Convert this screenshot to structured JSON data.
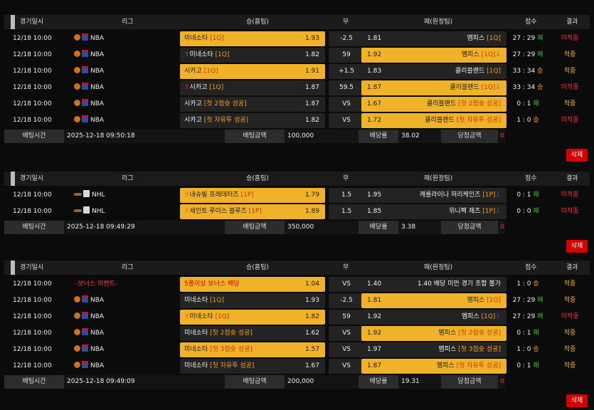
{
  "headers": {
    "date": "경기일시",
    "league": "리그",
    "home": "승(홈팀)",
    "draw": "무",
    "away": "패(원정팀)",
    "score": "점수",
    "result": "결과"
  },
  "footer_labels": {
    "bet_time": "배팅시간",
    "bet_amount": "배팅금액",
    "odds": "배당률",
    "win_amount": "당첨금액"
  },
  "delete_label": "삭제",
  "tickets": [
    {
      "rows": [
        {
          "date": "12/18 10:00",
          "league": "NBA",
          "home": "미네소타",
          "home_tag": "[1Q]",
          "home_arrow": "",
          "home_odds": "1.93",
          "home_sel": true,
          "mid": "-2.5",
          "away": "멤피스",
          "away_tag": "[1Q]",
          "away_arrow": "",
          "away_odds": "1.81",
          "away_sel": false,
          "score_a": "27 : 29",
          "score_r": "패",
          "result": "미적중",
          "miss": true
        },
        {
          "date": "12/18 10:00",
          "league": "NBA",
          "home": "미네소타",
          "home_tag": "[1Q]",
          "home_arrow": "⇧",
          "home_odds": "1.82",
          "home_sel": false,
          "mid": "59",
          "away": "멤피스",
          "away_tag": "[1Q]",
          "away_arrow": "⇩",
          "away_odds": "1.92",
          "away_sel": true,
          "score_a": "27 : 29",
          "score_r": "패",
          "result": "적중",
          "miss": false
        },
        {
          "date": "12/18 10:00",
          "league": "NBA",
          "home": "시카고",
          "home_tag": "[1Q]",
          "home_arrow": "",
          "home_odds": "1.91",
          "home_sel": true,
          "mid": "+1.5",
          "away": "클리블랜드",
          "away_tag": "[1Q]",
          "away_arrow": "",
          "away_odds": "1.83",
          "away_sel": false,
          "score_a": "33 : 34",
          "score_r": "승",
          "result": "적중",
          "miss": false
        },
        {
          "date": "12/18 10:00",
          "league": "NBA",
          "home": "시카고",
          "home_tag": "[1Q]",
          "home_arrow": "⇧",
          "home_odds": "1.87",
          "home_sel": false,
          "mid": "59.5",
          "away": "클리블랜드",
          "away_tag": "[1Q]",
          "away_arrow": "⇩",
          "away_odds": "1.87",
          "away_sel": true,
          "score_a": "33 : 34",
          "score_r": "승",
          "result": "미적중",
          "miss": true
        },
        {
          "date": "12/18 10:00",
          "league": "NBA",
          "home": "시카고",
          "home_tag": "[첫 2점슛 성공]",
          "home_arrow": "",
          "home_odds": "1.87",
          "home_sel": false,
          "mid": "VS",
          "away": "클리블랜드",
          "away_tag": "[첫 2점슛 성공]",
          "away_arrow": "",
          "away_odds": "1.67",
          "away_sel": true,
          "score_a": "0 : 1",
          "score_r": "패",
          "result": "적중",
          "miss": false
        },
        {
          "date": "12/18 10:00",
          "league": "NBA",
          "home": "시카고",
          "home_tag": "[첫 자유투 성공]",
          "home_arrow": "",
          "home_odds": "1.82",
          "home_sel": false,
          "mid": "VS",
          "away": "클리블랜드",
          "away_tag": "[첫 자유투 성공]",
          "away_arrow": "",
          "away_odds": "1.72",
          "away_sel": true,
          "score_a": "1 : 0",
          "score_r": "승",
          "result": "미적중",
          "miss": true
        }
      ],
      "bet_time": "2025-12-18 09:50:18",
      "bet_amount": "100,000",
      "odds": "38.02",
      "win_amount": "0"
    },
    {
      "rows": [
        {
          "date": "12/18 10:00",
          "league": "NHL",
          "home": "내슈빌 프레데터즈",
          "home_tag": "[1P]",
          "home_arrow": "⇧",
          "home_odds": "1.79",
          "home_sel": true,
          "mid": "1.5",
          "away": "캐롤라이나 허리케인즈",
          "away_tag": "[1P]",
          "away_arrow": "⇩",
          "away_odds": "1.95",
          "away_sel": false,
          "score_a": "0 : 1",
          "score_r": "패",
          "result": "미적중",
          "miss": true
        },
        {
          "date": "12/18 10:00",
          "league": "NHL",
          "home": "세인트 루이스 블루즈",
          "home_tag": "[1P]",
          "home_arrow": "⇧",
          "home_odds": "1.89",
          "home_sel": true,
          "mid": "1.5",
          "away": "위니펙 제츠",
          "away_tag": "[1P]",
          "away_arrow": "⇩",
          "away_odds": "1.85",
          "away_sel": false,
          "score_a": "0 : 0",
          "score_r": "패",
          "result": "미적중",
          "miss": true
        }
      ],
      "bet_time": "2025-12-18 09:49:29",
      "bet_amount": "350,000",
      "odds": "3.38",
      "win_amount": "0"
    },
    {
      "rows": [
        {
          "date": "12/18 10:00",
          "league": "-보너스 이벤트-",
          "league_event": true,
          "home": "5폴이상 보너스 배당",
          "home_tag": "",
          "home_arrow": "",
          "home_odds": "1.04",
          "home_sel": true,
          "home_red": true,
          "mid": "VS",
          "away": "1.40 배당 미만 경기 조합 불가",
          "away_tag": "",
          "away_arrow": "",
          "away_odds": "1.40",
          "away_sel": false,
          "score_a": "1 : 0",
          "score_r": "승",
          "result": "적중",
          "miss": false
        },
        {
          "date": "12/18 10:00",
          "league": "NBA",
          "home": "미네소타",
          "home_tag": "[1Q]",
          "home_arrow": "",
          "home_odds": "1.93",
          "home_sel": false,
          "mid": "-2.5",
          "away": "멤피스",
          "away_tag": "[1Q]",
          "away_arrow": "",
          "away_odds": "1.81",
          "away_sel": true,
          "score_a": "27 : 29",
          "score_r": "패",
          "result": "적중",
          "miss": false
        },
        {
          "date": "12/18 10:00",
          "league": "NBA",
          "home": "미네소타",
          "home_tag": "[1Q]",
          "home_arrow": "⇧",
          "home_odds": "1.82",
          "home_sel": true,
          "mid": "59",
          "away": "멤피스",
          "away_tag": "[1Q]",
          "away_arrow": "⇩",
          "away_odds": "1.92",
          "away_sel": false,
          "score_a": "27 : 29",
          "score_r": "패",
          "result": "미적중",
          "miss": true
        },
        {
          "date": "12/18 10:00",
          "league": "NBA",
          "home": "미네소타",
          "home_tag": "[첫 2점슛 성공]",
          "home_arrow": "",
          "home_odds": "1.62",
          "home_sel": false,
          "mid": "VS",
          "away": "멤피스",
          "away_tag": "[첫 2점슛 성공]",
          "away_arrow": "",
          "away_odds": "1.92",
          "away_sel": true,
          "score_a": "0 : 1",
          "score_r": "패",
          "result": "적중",
          "miss": false
        },
        {
          "date": "12/18 10:00",
          "league": "NBA",
          "home": "미네소타",
          "home_tag": "[첫 3점슛 성공]",
          "home_arrow": "",
          "home_odds": "1.57",
          "home_sel": true,
          "mid": "VS",
          "away": "멤피스",
          "away_tag": "[첫 3점슛 성공]",
          "away_arrow": "",
          "away_odds": "1.97",
          "away_sel": false,
          "score_a": "1 : 0",
          "score_r": "승",
          "result": "적중",
          "miss": false
        },
        {
          "date": "12/18 10:00",
          "league": "NBA",
          "home": "미네소타",
          "home_tag": "[첫 자유투 성공]",
          "home_arrow": "",
          "home_odds": "1.67",
          "home_sel": false,
          "mid": "VS",
          "away": "멤피스",
          "away_tag": "[첫 자유투 성공]",
          "away_arrow": "",
          "away_odds": "1.87",
          "away_sel": true,
          "score_a": "0 : 1",
          "score_r": "패",
          "result": "적중",
          "miss": false
        }
      ],
      "bet_time": "2025-12-18 09:49:09",
      "bet_amount": "200,000",
      "odds": "19.31",
      "win_amount": "0"
    }
  ],
  "colors": {
    "selected": "#f0b228",
    "miss": "#ff2d2d",
    "hit": "#f0b228",
    "delete": "#d40000"
  }
}
